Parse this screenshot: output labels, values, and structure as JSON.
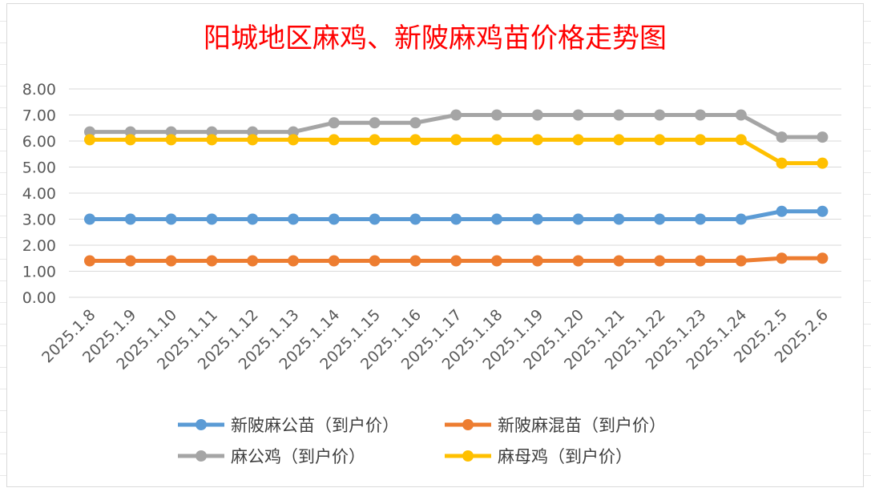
{
  "chart_data": {
    "type": "line",
    "title": "阳城地区麻鸡、新陂麻鸡苗价格走势图",
    "xlabel": "",
    "ylabel": "",
    "ylim": [
      0,
      8
    ],
    "yticks": [
      "0.00",
      "1.00",
      "2.00",
      "3.00",
      "4.00",
      "5.00",
      "6.00",
      "7.00",
      "8.00"
    ],
    "grid": true,
    "legend_position": "bottom",
    "categories": [
      "2025.1.8",
      "2025.1.9",
      "2025.1.10",
      "2025.1.11",
      "2025.1.12",
      "2025.1.13",
      "2025.1.14",
      "2025.1.15",
      "2025.1.16",
      "2025.1.17",
      "2025.1.18",
      "2025.1.19",
      "2025.1.20",
      "2025.1.21",
      "2025.1.22",
      "2025.1.23",
      "2025.1.24",
      "2025.2.5",
      "2025.2.6"
    ],
    "series": [
      {
        "name": "新陂麻公苗（到户价）",
        "color": "#5b9bd5",
        "values": [
          3.0,
          3.0,
          3.0,
          3.0,
          3.0,
          3.0,
          3.0,
          3.0,
          3.0,
          3.0,
          3.0,
          3.0,
          3.0,
          3.0,
          3.0,
          3.0,
          3.0,
          3.3,
          3.3
        ]
      },
      {
        "name": "新陂麻混苗（到户价）",
        "color": "#ed7d31",
        "values": [
          1.4,
          1.4,
          1.4,
          1.4,
          1.4,
          1.4,
          1.4,
          1.4,
          1.4,
          1.4,
          1.4,
          1.4,
          1.4,
          1.4,
          1.4,
          1.4,
          1.4,
          1.5,
          1.5
        ]
      },
      {
        "name": "麻公鸡（到户价）",
        "color": "#a5a5a5",
        "values": [
          6.35,
          6.35,
          6.35,
          6.35,
          6.35,
          6.35,
          6.7,
          6.7,
          6.7,
          7.0,
          7.0,
          7.0,
          7.0,
          7.0,
          7.0,
          7.0,
          7.0,
          6.15,
          6.15
        ]
      },
      {
        "name": "麻母鸡（到户价）",
        "color": "#ffc000",
        "values": [
          6.05,
          6.05,
          6.05,
          6.05,
          6.05,
          6.05,
          6.05,
          6.05,
          6.05,
          6.05,
          6.05,
          6.05,
          6.05,
          6.05,
          6.05,
          6.05,
          6.05,
          5.15,
          5.15
        ]
      }
    ]
  }
}
